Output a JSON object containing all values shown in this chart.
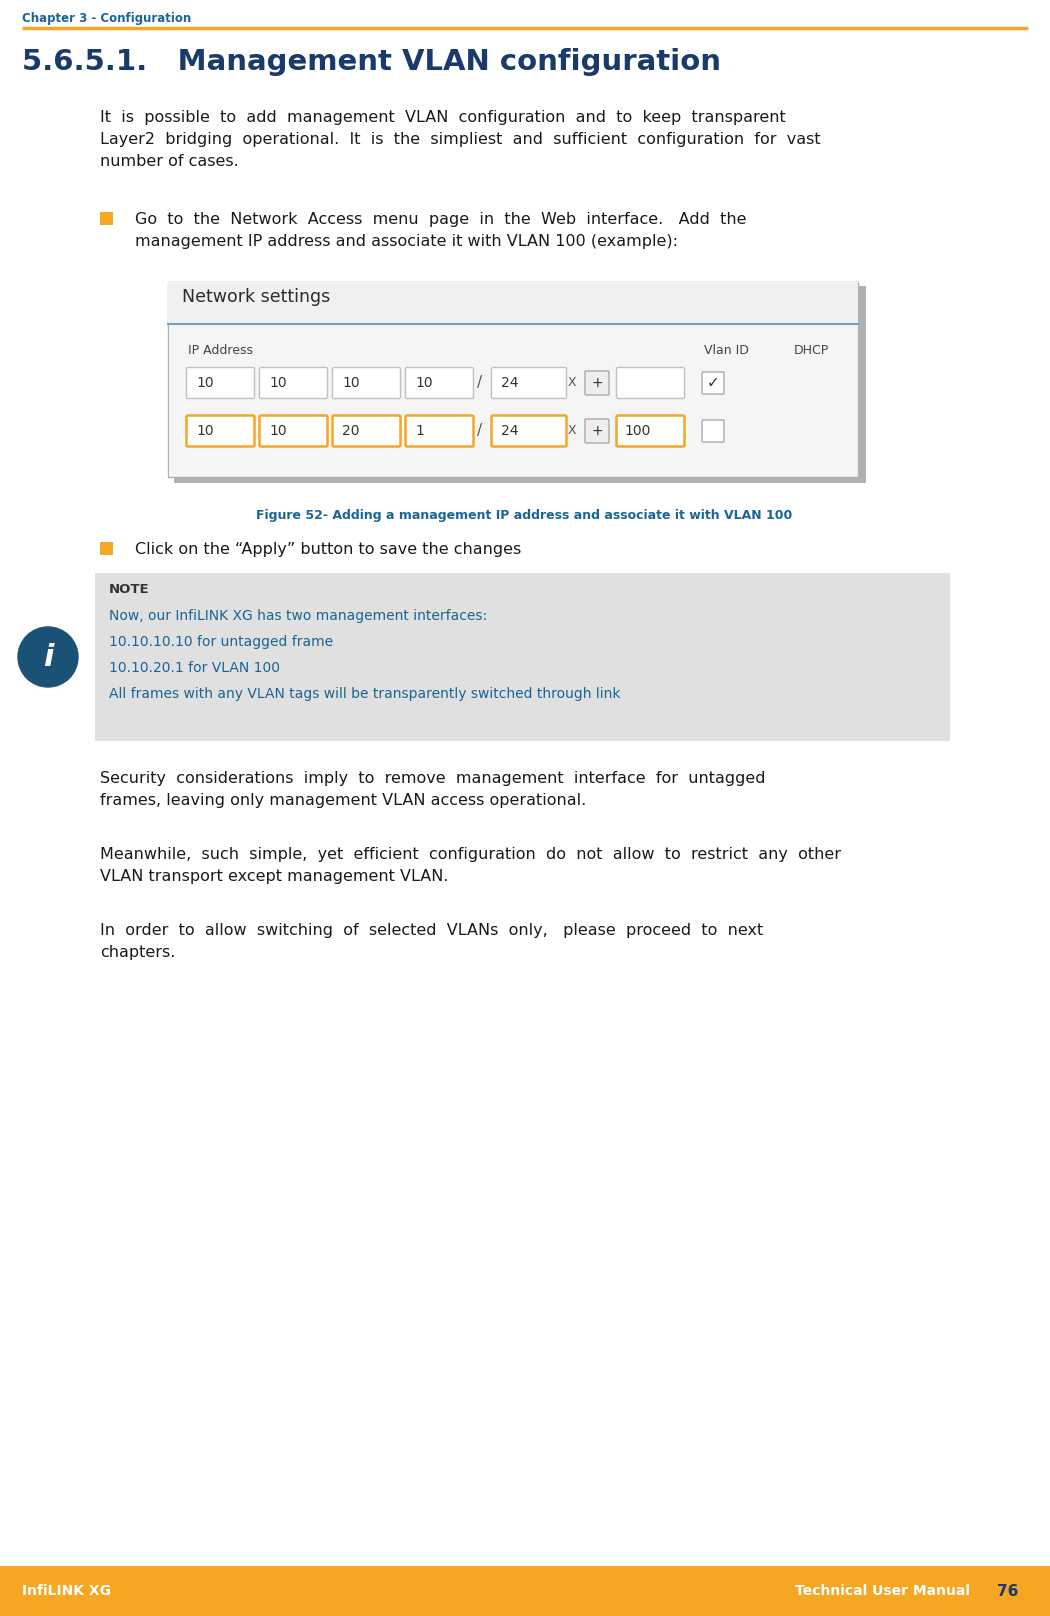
{
  "page_width": 10.5,
  "page_height": 16.16,
  "dpi": 100,
  "background_color": "#ffffff",
  "header_text": "Chapter 3 - Configuration",
  "header_color": "#1a6496",
  "header_font_size": 8.5,
  "orange_line_color": "#f5a623",
  "title_text": "5.6.5.1.   Management VLAN configuration",
  "title_color": "#1a3a6b",
  "title_font_size": 21,
  "body_color": "#1a1a1a",
  "body_font_size": 11.5,
  "bullet_color": "#f5a623",
  "figure_caption": "Figure 52- Adding a management IP address and associate it with VLAN 100",
  "figure_caption_color": "#1a6496",
  "bullet_text_2": "Click on the “Apply” button to save the changes",
  "note_bg_color": "#e0e0e0",
  "note_title": "NOTE",
  "note_title_color": "#333333",
  "note_lines": [
    "Now, our InfiLINK XG has two management interfaces:",
    "10.10.10.10 for untagged frame",
    "10.10.20.1 for VLAN 100",
    "All frames with any VLAN tags will be transparently switched through link"
  ],
  "note_text_color": "#1a6496",
  "info_icon_color": "#1a5276",
  "footer_bg_color": "#f5a623",
  "footer_left": "InfiLINK XG",
  "footer_right": "Technical User Manual",
  "footer_page": "76",
  "footer_text_color": "#ffffff",
  "footer_page_color": "#1a3a6b"
}
